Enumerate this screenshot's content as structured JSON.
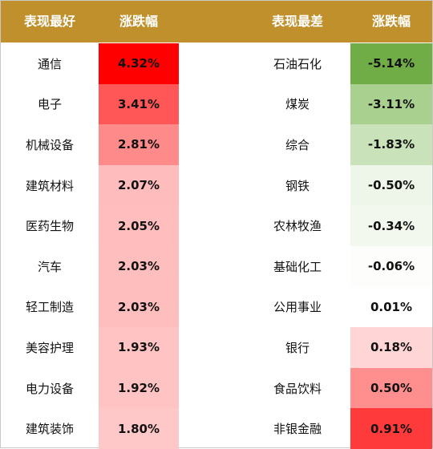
{
  "header": {
    "best_label": "表现最好",
    "best_change_label": "涨跌幅",
    "worst_label": "表现最差",
    "worst_change_label": "涨跌幅"
  },
  "colors": {
    "header_bg": "#c0902c",
    "header_text": "#ffffff"
  },
  "rows": [
    {
      "best_name": "通信",
      "best_value": "4.32%",
      "best_color": "#ff0000",
      "worst_name": "石油石化",
      "worst_value": "-5.14%",
      "worst_color": "#70ad47"
    },
    {
      "best_name": "电子",
      "best_value": "3.41%",
      "best_color": "#ff5757",
      "worst_name": "煤炭",
      "worst_value": "-3.11%",
      "worst_color": "#a9d08e"
    },
    {
      "best_name": "机械设备",
      "best_value": "2.81%",
      "best_color": "#ff8a8a",
      "worst_name": "综合",
      "worst_value": "-1.83%",
      "worst_color": "#c9e2b9"
    },
    {
      "best_name": "建筑材料",
      "best_value": "2.07%",
      "best_color": "#ffbcbc",
      "worst_name": "钢铁",
      "worst_value": "-0.50%",
      "worst_color": "#eef5e9"
    },
    {
      "best_name": "医药生物",
      "best_value": "2.05%",
      "best_color": "#ffbdbd",
      "worst_name": "农林牧渔",
      "worst_value": "-0.34%",
      "worst_color": "#f3f8ef"
    },
    {
      "best_name": "汽车",
      "best_value": "2.03%",
      "best_color": "#ffbebe",
      "worst_name": "基础化工",
      "worst_value": "-0.06%",
      "worst_color": "#fdfdfc"
    },
    {
      "best_name": "轻工制造",
      "best_value": "2.03%",
      "best_color": "#ffbebe",
      "worst_name": "公用事业",
      "worst_value": "0.01%",
      "worst_color": "#ffffff"
    },
    {
      "best_name": "美容护理",
      "best_value": "1.93%",
      "best_color": "#ffc3c3",
      "worst_name": "银行",
      "worst_value": "0.18%",
      "worst_color": "#ffd5d5"
    },
    {
      "best_name": "电力设备",
      "best_value": "1.92%",
      "best_color": "#ffc3c3",
      "worst_name": "食品饮料",
      "worst_value": "0.50%",
      "worst_color": "#ff8f8f"
    },
    {
      "best_name": "建筑装饰",
      "best_value": "1.80%",
      "best_color": "#ffc8c8",
      "worst_name": "非银金融",
      "worst_value": "0.91%",
      "worst_color": "#ff3a3a"
    }
  ]
}
